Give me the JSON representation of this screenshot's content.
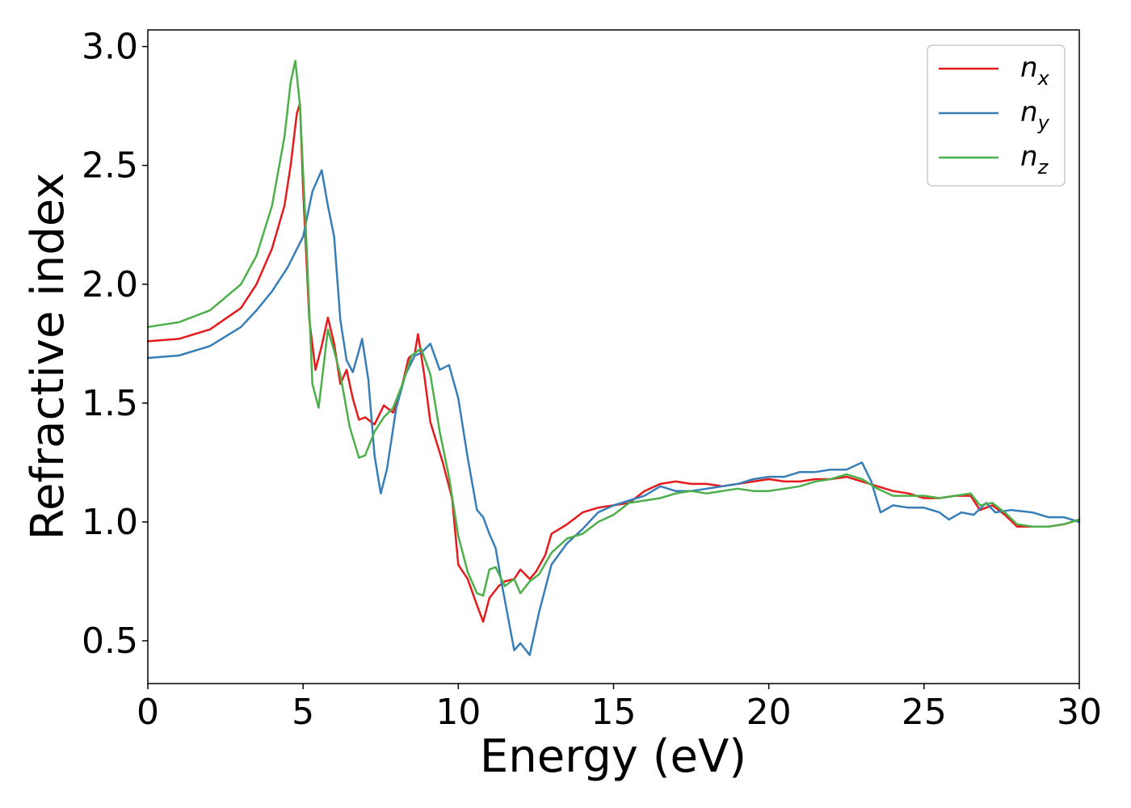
{
  "chart_data": {
    "type": "line",
    "xlabel": "Energy (eV)",
    "ylabel": "Refractive index",
    "xlim": [
      0,
      30
    ],
    "ylim": [
      0.32,
      3.07
    ],
    "x_ticks": [
      0,
      5,
      10,
      15,
      20,
      25,
      30
    ],
    "x_tick_labels": [
      "0",
      "5",
      "10",
      "15",
      "20",
      "25",
      "30"
    ],
    "y_ticks": [
      0.5,
      1.0,
      1.5,
      2.0,
      2.5,
      3.0
    ],
    "y_tick_labels": [
      "0.5",
      "1.0",
      "1.5",
      "2.0",
      "2.5",
      "3.0"
    ],
    "grid": false,
    "legend_position": "top-right",
    "series": [
      {
        "name": "n_x",
        "label_main": "n",
        "label_sub": "x",
        "color": "#e41a1c",
        "points": [
          [
            0,
            1.76
          ],
          [
            1,
            1.77
          ],
          [
            2,
            1.81
          ],
          [
            3,
            1.9
          ],
          [
            3.5,
            2.0
          ],
          [
            4,
            2.15
          ],
          [
            4.4,
            2.33
          ],
          [
            4.6,
            2.5
          ],
          [
            4.8,
            2.72
          ],
          [
            4.9,
            2.76
          ],
          [
            5.0,
            2.4
          ],
          [
            5.2,
            1.85
          ],
          [
            5.4,
            1.64
          ],
          [
            5.6,
            1.74
          ],
          [
            5.8,
            1.86
          ],
          [
            6.0,
            1.75
          ],
          [
            6.2,
            1.58
          ],
          [
            6.4,
            1.64
          ],
          [
            6.6,
            1.52
          ],
          [
            6.8,
            1.43
          ],
          [
            7.0,
            1.44
          ],
          [
            7.3,
            1.41
          ],
          [
            7.6,
            1.49
          ],
          [
            7.9,
            1.46
          ],
          [
            8.2,
            1.58
          ],
          [
            8.4,
            1.69
          ],
          [
            8.6,
            1.71
          ],
          [
            8.7,
            1.79
          ],
          [
            8.9,
            1.62
          ],
          [
            9.1,
            1.42
          ],
          [
            9.5,
            1.25
          ],
          [
            9.8,
            1.1
          ],
          [
            10.0,
            0.82
          ],
          [
            10.3,
            0.76
          ],
          [
            10.6,
            0.65
          ],
          [
            10.8,
            0.58
          ],
          [
            11.0,
            0.68
          ],
          [
            11.3,
            0.73
          ],
          [
            11.5,
            0.75
          ],
          [
            11.8,
            0.76
          ],
          [
            12.0,
            0.8
          ],
          [
            12.3,
            0.76
          ],
          [
            12.5,
            0.79
          ],
          [
            12.8,
            0.86
          ],
          [
            13.0,
            0.95
          ],
          [
            13.5,
            0.99
          ],
          [
            14.0,
            1.04
          ],
          [
            14.5,
            1.06
          ],
          [
            15.0,
            1.07
          ],
          [
            15.5,
            1.08
          ],
          [
            16.0,
            1.13
          ],
          [
            16.5,
            1.16
          ],
          [
            17.0,
            1.17
          ],
          [
            17.5,
            1.16
          ],
          [
            18.0,
            1.16
          ],
          [
            18.5,
            1.15
          ],
          [
            19.0,
            1.16
          ],
          [
            19.5,
            1.17
          ],
          [
            20.0,
            1.18
          ],
          [
            20.5,
            1.17
          ],
          [
            21.0,
            1.17
          ],
          [
            21.5,
            1.18
          ],
          [
            22.0,
            1.18
          ],
          [
            22.5,
            1.19
          ],
          [
            23.0,
            1.17
          ],
          [
            23.5,
            1.15
          ],
          [
            24.0,
            1.13
          ],
          [
            24.5,
            1.12
          ],
          [
            25.0,
            1.1
          ],
          [
            25.5,
            1.1
          ],
          [
            26.0,
            1.11
          ],
          [
            26.5,
            1.11
          ],
          [
            26.8,
            1.05
          ],
          [
            27.2,
            1.07
          ],
          [
            27.6,
            1.03
          ],
          [
            28.0,
            0.98
          ],
          [
            28.5,
            0.98
          ],
          [
            29.0,
            0.98
          ],
          [
            29.5,
            0.99
          ],
          [
            30.0,
            1.01
          ]
        ]
      },
      {
        "name": "n_y",
        "label_main": "n",
        "label_sub": "y",
        "color": "#377eb8",
        "points": [
          [
            0,
            1.69
          ],
          [
            1,
            1.7
          ],
          [
            2,
            1.74
          ],
          [
            3,
            1.82
          ],
          [
            3.5,
            1.89
          ],
          [
            4,
            1.97
          ],
          [
            4.5,
            2.07
          ],
          [
            5.0,
            2.2
          ],
          [
            5.3,
            2.39
          ],
          [
            5.6,
            2.48
          ],
          [
            5.8,
            2.33
          ],
          [
            6.0,
            2.2
          ],
          [
            6.2,
            1.85
          ],
          [
            6.4,
            1.68
          ],
          [
            6.6,
            1.63
          ],
          [
            6.8,
            1.72
          ],
          [
            6.9,
            1.77
          ],
          [
            7.1,
            1.6
          ],
          [
            7.3,
            1.28
          ],
          [
            7.5,
            1.12
          ],
          [
            7.7,
            1.22
          ],
          [
            8.0,
            1.48
          ],
          [
            8.3,
            1.62
          ],
          [
            8.6,
            1.7
          ],
          [
            8.8,
            1.71
          ],
          [
            9.1,
            1.75
          ],
          [
            9.4,
            1.64
          ],
          [
            9.7,
            1.66
          ],
          [
            10.0,
            1.52
          ],
          [
            10.3,
            1.27
          ],
          [
            10.6,
            1.05
          ],
          [
            10.8,
            1.02
          ],
          [
            11.0,
            0.95
          ],
          [
            11.2,
            0.89
          ],
          [
            11.4,
            0.74
          ],
          [
            11.6,
            0.6
          ],
          [
            11.8,
            0.46
          ],
          [
            12.0,
            0.49
          ],
          [
            12.3,
            0.44
          ],
          [
            12.6,
            0.62
          ],
          [
            13.0,
            0.82
          ],
          [
            13.5,
            0.91
          ],
          [
            14.0,
            0.97
          ],
          [
            14.5,
            1.04
          ],
          [
            15.0,
            1.07
          ],
          [
            15.5,
            1.09
          ],
          [
            16.0,
            1.11
          ],
          [
            16.5,
            1.15
          ],
          [
            17.0,
            1.13
          ],
          [
            17.5,
            1.13
          ],
          [
            18.0,
            1.14
          ],
          [
            18.5,
            1.15
          ],
          [
            19.0,
            1.16
          ],
          [
            19.5,
            1.18
          ],
          [
            20.0,
            1.19
          ],
          [
            20.5,
            1.19
          ],
          [
            21.0,
            1.21
          ],
          [
            21.5,
            1.21
          ],
          [
            22.0,
            1.22
          ],
          [
            22.5,
            1.22
          ],
          [
            23.0,
            1.25
          ],
          [
            23.3,
            1.17
          ],
          [
            23.6,
            1.04
          ],
          [
            24.0,
            1.07
          ],
          [
            24.5,
            1.06
          ],
          [
            25.0,
            1.06
          ],
          [
            25.5,
            1.04
          ],
          [
            25.8,
            1.01
          ],
          [
            26.2,
            1.04
          ],
          [
            26.6,
            1.03
          ],
          [
            27.0,
            1.08
          ],
          [
            27.3,
            1.04
          ],
          [
            27.8,
            1.05
          ],
          [
            28.5,
            1.04
          ],
          [
            29.0,
            1.02
          ],
          [
            29.5,
            1.02
          ],
          [
            30.0,
            1.0
          ]
        ]
      },
      {
        "name": "n_z",
        "label_main": "n",
        "label_sub": "z",
        "color": "#4daf4a",
        "points": [
          [
            0,
            1.82
          ],
          [
            1,
            1.84
          ],
          [
            2,
            1.89
          ],
          [
            3,
            2.0
          ],
          [
            3.5,
            2.12
          ],
          [
            4.0,
            2.33
          ],
          [
            4.4,
            2.62
          ],
          [
            4.6,
            2.85
          ],
          [
            4.75,
            2.94
          ],
          [
            4.9,
            2.75
          ],
          [
            5.1,
            2.2
          ],
          [
            5.3,
            1.58
          ],
          [
            5.5,
            1.48
          ],
          [
            5.7,
            1.7
          ],
          [
            5.8,
            1.81
          ],
          [
            6.0,
            1.72
          ],
          [
            6.2,
            1.62
          ],
          [
            6.5,
            1.4
          ],
          [
            6.8,
            1.27
          ],
          [
            7.0,
            1.28
          ],
          [
            7.3,
            1.38
          ],
          [
            7.6,
            1.44
          ],
          [
            7.9,
            1.48
          ],
          [
            8.2,
            1.58
          ],
          [
            8.5,
            1.7
          ],
          [
            8.8,
            1.73
          ],
          [
            9.1,
            1.62
          ],
          [
            9.4,
            1.38
          ],
          [
            9.7,
            1.19
          ],
          [
            10.0,
            0.94
          ],
          [
            10.3,
            0.79
          ],
          [
            10.6,
            0.7
          ],
          [
            10.8,
            0.69
          ],
          [
            11.0,
            0.8
          ],
          [
            11.2,
            0.81
          ],
          [
            11.5,
            0.73
          ],
          [
            11.8,
            0.76
          ],
          [
            12.0,
            0.7
          ],
          [
            12.3,
            0.75
          ],
          [
            12.6,
            0.78
          ],
          [
            13.0,
            0.87
          ],
          [
            13.5,
            0.93
          ],
          [
            14.0,
            0.95
          ],
          [
            14.5,
            1.0
          ],
          [
            15.0,
            1.03
          ],
          [
            15.5,
            1.08
          ],
          [
            16.0,
            1.09
          ],
          [
            16.5,
            1.1
          ],
          [
            17.0,
            1.12
          ],
          [
            17.5,
            1.13
          ],
          [
            18.0,
            1.12
          ],
          [
            18.5,
            1.13
          ],
          [
            19.0,
            1.14
          ],
          [
            19.5,
            1.13
          ],
          [
            20.0,
            1.13
          ],
          [
            20.5,
            1.14
          ],
          [
            21.0,
            1.15
          ],
          [
            21.5,
            1.17
          ],
          [
            22.0,
            1.18
          ],
          [
            22.5,
            1.2
          ],
          [
            23.0,
            1.18
          ],
          [
            23.5,
            1.14
          ],
          [
            24.0,
            1.11
          ],
          [
            24.5,
            1.11
          ],
          [
            25.0,
            1.11
          ],
          [
            25.5,
            1.1
          ],
          [
            26.0,
            1.11
          ],
          [
            26.5,
            1.12
          ],
          [
            26.8,
            1.07
          ],
          [
            27.2,
            1.08
          ],
          [
            27.6,
            1.04
          ],
          [
            28.0,
            0.99
          ],
          [
            28.5,
            0.98
          ],
          [
            29.0,
            0.98
          ],
          [
            29.5,
            0.99
          ],
          [
            30.0,
            1.01
          ]
        ]
      }
    ]
  }
}
